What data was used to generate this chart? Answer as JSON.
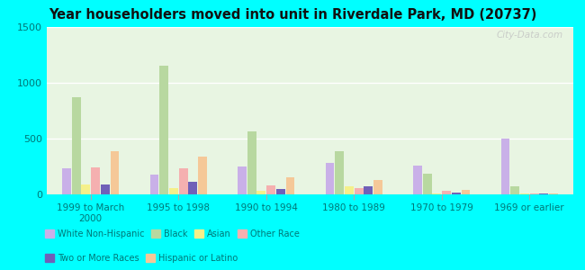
{
  "title": "Year householders moved into unit in Riverdale Park, MD (20737)",
  "categories": [
    "1999 to March\n2000",
    "1995 to 1998",
    "1990 to 1994",
    "1980 to 1989",
    "1970 to 1979",
    "1969 or earlier"
  ],
  "series_order": [
    "White Non-Hispanic",
    "Black",
    "Asian",
    "Other Race",
    "Two or More Races",
    "Hispanic or Latino"
  ],
  "series": {
    "White Non-Hispanic": [
      230,
      175,
      250,
      285,
      260,
      500
    ],
    "Black": [
      870,
      1150,
      565,
      390,
      185,
      75
    ],
    "Asian": [
      85,
      55,
      30,
      75,
      10,
      5
    ],
    "Other Race": [
      240,
      230,
      80,
      55,
      30,
      5
    ],
    "Two or More Races": [
      90,
      110,
      50,
      75,
      20,
      5
    ],
    "Hispanic or Latino": [
      390,
      340,
      155,
      130,
      40,
      10
    ]
  },
  "colors": {
    "White Non-Hispanic": "#c9b0e8",
    "Black": "#b8d8a0",
    "Asian": "#f5f08a",
    "Other Race": "#f5b0b0",
    "Two or More Races": "#7060b8",
    "Hispanic or Latino": "#f5c898"
  },
  "legend_order": [
    "White Non-Hispanic",
    "Black",
    "Asian",
    "Other Race",
    "Two or More Races",
    "Hispanic or Latino"
  ],
  "ylim": [
    0,
    1500
  ],
  "yticks": [
    0,
    500,
    1000,
    1500
  ],
  "background_color": "#00ffff",
  "plot_bg": "#e8f5e2",
  "watermark": "City-Data.com"
}
